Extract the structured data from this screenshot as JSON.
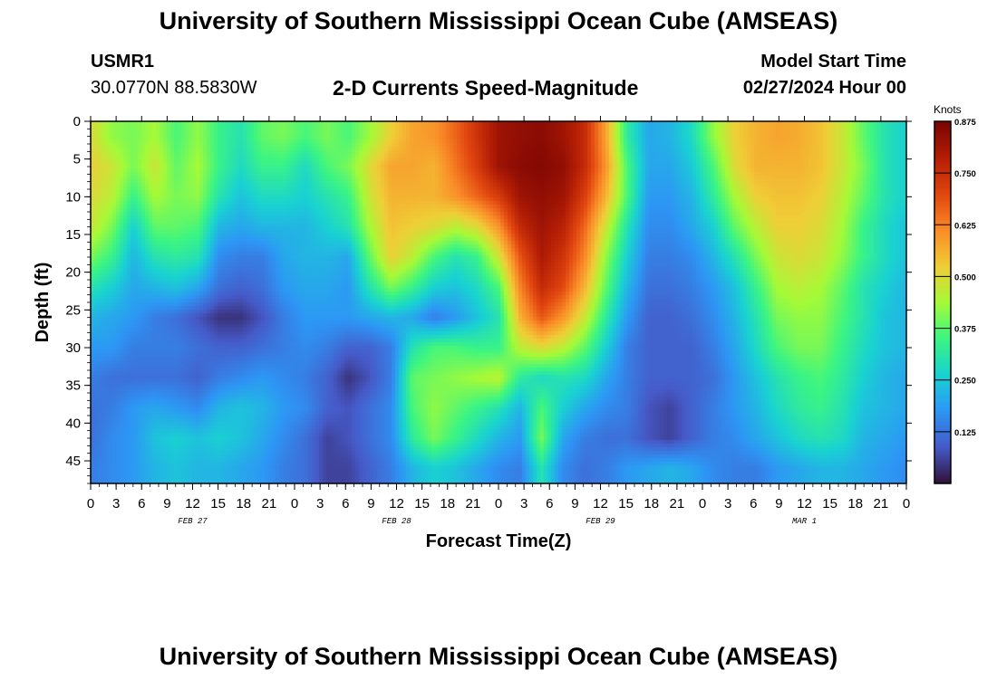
{
  "header": {
    "title": "University of Southern Mississippi Ocean Cube (AMSEAS)",
    "station": "USMR1",
    "location": "30.0770N  88.5830W",
    "subtitle": "2-D Currents Speed-Magnitude",
    "model_start_label": "Model Start Time",
    "model_start_value": "02/27/2024 Hour 00"
  },
  "footer": {
    "title": "University of Southern Mississippi Ocean Cube (AMSEAS)"
  },
  "chart_data": {
    "type": "heatmap",
    "xlabel": "Forecast Time(Z)",
    "ylabel": "Depth (ft)",
    "x_unit": "hours from model start",
    "xlim": [
      0,
      96
    ],
    "ylim": [
      0,
      48
    ],
    "y_inverted": true,
    "x_ticks": [
      0,
      3,
      6,
      9,
      12,
      15,
      18,
      21,
      24,
      27,
      30,
      33,
      36,
      39,
      42,
      45,
      48,
      51,
      54,
      57,
      60,
      63,
      66,
      69,
      72,
      75,
      78,
      81,
      84,
      87,
      90,
      93,
      96
    ],
    "x_tick_labels": [
      "0",
      "3",
      "6",
      "9",
      "12",
      "15",
      "18",
      "21",
      "0",
      "3",
      "6",
      "9",
      "12",
      "15",
      "18",
      "21",
      "0",
      "3",
      "6",
      "9",
      "12",
      "15",
      "18",
      "21",
      "0",
      "3",
      "6",
      "9",
      "12",
      "15",
      "18",
      "21",
      "0"
    ],
    "day_labels": [
      {
        "label": "FEB 27",
        "x": 12
      },
      {
        "label": "FEB 28",
        "x": 36
      },
      {
        "label": "FEB 29",
        "x": 60
      },
      {
        "label": "MAR 1",
        "x": 84
      }
    ],
    "y_ticks": [
      0,
      5,
      10,
      15,
      20,
      25,
      30,
      35,
      40,
      45
    ],
    "y_tick_labels": [
      "0",
      "5",
      "10",
      "15",
      "20",
      "25",
      "30",
      "35",
      "40",
      "45"
    ],
    "colorbar": {
      "unit_label": "Knots",
      "min": 0.0,
      "max": 0.875,
      "ticks": [
        0.125,
        0.25,
        0.375,
        0.5,
        0.625,
        0.75,
        0.875
      ],
      "tick_labels": [
        "0.125",
        "0.250",
        "0.375",
        "0.500",
        "0.625",
        "0.750",
        "0.875"
      ],
      "colormap": "turbo"
    },
    "series": [
      {
        "depth": 2,
        "speed": [
          0.5,
          0.42,
          0.4,
          0.44,
          0.36,
          0.42,
          0.34,
          0.3,
          0.38,
          0.4,
          0.36,
          0.4,
          0.36,
          0.43,
          0.52,
          0.58,
          0.6,
          0.66,
          0.74,
          0.82,
          0.84,
          0.85,
          0.82,
          0.76,
          0.58,
          0.32,
          0.2,
          0.22,
          0.28,
          0.42,
          0.52,
          0.56,
          0.58,
          0.57,
          0.54,
          0.48,
          0.38,
          0.3,
          0.26
        ]
      },
      {
        "depth": 6,
        "speed": [
          0.52,
          0.48,
          0.4,
          0.48,
          0.38,
          0.44,
          0.34,
          0.28,
          0.34,
          0.34,
          0.28,
          0.36,
          0.4,
          0.5,
          0.58,
          0.58,
          0.56,
          0.64,
          0.72,
          0.82,
          0.85,
          0.86,
          0.84,
          0.76,
          0.6,
          0.36,
          0.2,
          0.2,
          0.25,
          0.36,
          0.5,
          0.56,
          0.56,
          0.56,
          0.54,
          0.48,
          0.4,
          0.3,
          0.26
        ]
      },
      {
        "depth": 10,
        "speed": [
          0.5,
          0.46,
          0.34,
          0.44,
          0.4,
          0.42,
          0.3,
          0.24,
          0.28,
          0.28,
          0.26,
          0.3,
          0.34,
          0.48,
          0.56,
          0.56,
          0.56,
          0.6,
          0.66,
          0.72,
          0.82,
          0.84,
          0.82,
          0.72,
          0.56,
          0.36,
          0.18,
          0.18,
          0.22,
          0.32,
          0.44,
          0.52,
          0.54,
          0.54,
          0.52,
          0.46,
          0.38,
          0.3,
          0.26
        ]
      },
      {
        "depth": 14,
        "speed": [
          0.48,
          0.4,
          0.26,
          0.38,
          0.38,
          0.36,
          0.22,
          0.2,
          0.22,
          0.22,
          0.22,
          0.26,
          0.3,
          0.44,
          0.54,
          0.52,
          0.5,
          0.46,
          0.5,
          0.6,
          0.76,
          0.82,
          0.78,
          0.66,
          0.48,
          0.3,
          0.16,
          0.16,
          0.2,
          0.26,
          0.38,
          0.46,
          0.52,
          0.52,
          0.5,
          0.44,
          0.34,
          0.28,
          0.24
        ]
      },
      {
        "depth": 18,
        "speed": [
          0.4,
          0.34,
          0.22,
          0.3,
          0.32,
          0.3,
          0.16,
          0.14,
          0.14,
          0.2,
          0.22,
          0.22,
          0.2,
          0.38,
          0.52,
          0.46,
          0.36,
          0.3,
          0.34,
          0.48,
          0.68,
          0.8,
          0.74,
          0.62,
          0.42,
          0.26,
          0.14,
          0.14,
          0.16,
          0.22,
          0.3,
          0.4,
          0.48,
          0.5,
          0.48,
          0.42,
          0.34,
          0.28,
          0.24
        ]
      },
      {
        "depth": 22,
        "speed": [
          0.3,
          0.26,
          0.2,
          0.22,
          0.24,
          0.2,
          0.12,
          0.1,
          0.12,
          0.18,
          0.2,
          0.2,
          0.18,
          0.3,
          0.4,
          0.34,
          0.26,
          0.24,
          0.28,
          0.36,
          0.62,
          0.76,
          0.7,
          0.56,
          0.38,
          0.22,
          0.12,
          0.12,
          0.14,
          0.18,
          0.24,
          0.34,
          0.44,
          0.46,
          0.44,
          0.38,
          0.3,
          0.26,
          0.22
        ]
      },
      {
        "depth": 26,
        "speed": [
          0.22,
          0.2,
          0.18,
          0.14,
          0.12,
          0.08,
          0.04,
          0.04,
          0.08,
          0.14,
          0.18,
          0.18,
          0.18,
          0.2,
          0.22,
          0.2,
          0.14,
          0.18,
          0.24,
          0.3,
          0.56,
          0.68,
          0.6,
          0.48,
          0.32,
          0.18,
          0.1,
          0.1,
          0.12,
          0.16,
          0.22,
          0.3,
          0.4,
          0.42,
          0.42,
          0.36,
          0.3,
          0.24,
          0.22
        ]
      },
      {
        "depth": 30,
        "speed": [
          0.18,
          0.18,
          0.14,
          0.14,
          0.14,
          0.12,
          0.1,
          0.1,
          0.12,
          0.14,
          0.16,
          0.14,
          0.1,
          0.1,
          0.14,
          0.3,
          0.36,
          0.36,
          0.34,
          0.34,
          0.46,
          0.5,
          0.46,
          0.38,
          0.26,
          0.14,
          0.1,
          0.1,
          0.1,
          0.14,
          0.2,
          0.28,
          0.36,
          0.4,
          0.4,
          0.34,
          0.28,
          0.24,
          0.22
        ]
      },
      {
        "depth": 34,
        "speed": [
          0.14,
          0.12,
          0.12,
          0.12,
          0.12,
          0.1,
          0.14,
          0.16,
          0.18,
          0.16,
          0.14,
          0.1,
          0.04,
          0.08,
          0.14,
          0.38,
          0.4,
          0.42,
          0.44,
          0.46,
          0.32,
          0.28,
          0.3,
          0.28,
          0.2,
          0.14,
          0.1,
          0.1,
          0.1,
          0.12,
          0.18,
          0.24,
          0.3,
          0.34,
          0.36,
          0.32,
          0.26,
          0.22,
          0.2
        ]
      },
      {
        "depth": 38,
        "speed": [
          0.12,
          0.14,
          0.18,
          0.2,
          0.18,
          0.16,
          0.22,
          0.24,
          0.22,
          0.18,
          0.16,
          0.1,
          0.08,
          0.12,
          0.16,
          0.36,
          0.42,
          0.38,
          0.34,
          0.3,
          0.22,
          0.36,
          0.26,
          0.2,
          0.16,
          0.14,
          0.08,
          0.06,
          0.1,
          0.14,
          0.18,
          0.22,
          0.28,
          0.32,
          0.34,
          0.3,
          0.24,
          0.22,
          0.2
        ]
      },
      {
        "depth": 42,
        "speed": [
          0.12,
          0.16,
          0.18,
          0.24,
          0.26,
          0.24,
          0.26,
          0.24,
          0.2,
          0.16,
          0.12,
          0.06,
          0.08,
          0.12,
          0.16,
          0.32,
          0.4,
          0.34,
          0.28,
          0.22,
          0.18,
          0.4,
          0.2,
          0.14,
          0.12,
          0.12,
          0.08,
          0.06,
          0.1,
          0.14,
          0.16,
          0.2,
          0.24,
          0.28,
          0.3,
          0.28,
          0.22,
          0.2,
          0.18
        ]
      },
      {
        "depth": 46,
        "speed": [
          0.14,
          0.16,
          0.18,
          0.22,
          0.24,
          0.22,
          0.22,
          0.2,
          0.18,
          0.14,
          0.12,
          0.06,
          0.06,
          0.1,
          0.14,
          0.22,
          0.26,
          0.24,
          0.2,
          0.16,
          0.14,
          0.3,
          0.16,
          0.12,
          0.14,
          0.18,
          0.2,
          0.22,
          0.2,
          0.16,
          0.14,
          0.14,
          0.18,
          0.2,
          0.22,
          0.22,
          0.2,
          0.18,
          0.16
        ]
      }
    ],
    "series_x_step_hours": 2.5263
  }
}
